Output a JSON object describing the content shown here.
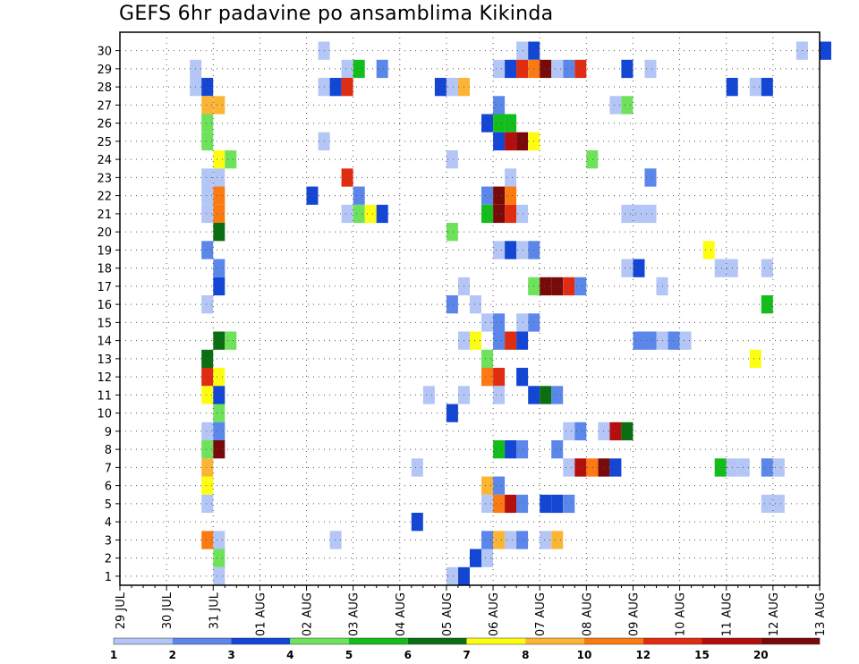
{
  "chart_data": {
    "type": "heatmap",
    "title": "GEFS 6hr padavine po ansamblima Kikinda",
    "xlabel": "",
    "ylabel": "",
    "x_ticks": [
      "29 JUL",
      "30 JUL",
      "31 JUL",
      "01 AUG",
      "02 AUG",
      "03 AUG",
      "04 AUG",
      "05 AUG",
      "06 AUG",
      "07 AUG",
      "08 AUG",
      "09 AUG",
      "10 AUG",
      "11 AUG",
      "12 AUG",
      "13 AUG"
    ],
    "y_range": [
      1,
      30
    ],
    "y_ticks": [
      1,
      2,
      3,
      4,
      5,
      6,
      7,
      8,
      9,
      10,
      11,
      12,
      13,
      14,
      15,
      16,
      17,
      18,
      19,
      20,
      21,
      22,
      23,
      24,
      25,
      26,
      27,
      28,
      29,
      30
    ],
    "grid": true,
    "time_step": "6hr",
    "colorbar": {
      "labels": [
        "1",
        "2",
        "3",
        "4",
        "5",
        "6",
        "7",
        "8",
        "10",
        "12",
        "15",
        "20"
      ],
      "colors": [
        "#b3c6f5",
        "#5b86ea",
        "#1446d6",
        "#6ee25b",
        "#12bd1c",
        "#0a6e12",
        "#fdfd12",
        "#fbb535",
        "#fb7a12",
        "#e02d12",
        "#b50e0e",
        "#780a0a"
      ]
    },
    "cells": [
      {
        "m": 30,
        "t": "02 AUG 06",
        "c": 1
      },
      {
        "m": 30,
        "t": "06 AUG 12",
        "c": 1
      },
      {
        "m": 30,
        "t": "06 AUG 18",
        "c": 3
      },
      {
        "m": 30,
        "t": "12 AUG 12",
        "c": 1
      },
      {
        "m": 30,
        "t": "13 AUG 00",
        "c": 3
      },
      {
        "m": 29,
        "t": "30 JUL 12",
        "c": 1
      },
      {
        "m": 29,
        "t": "02 AUG 18",
        "c": 1
      },
      {
        "m": 29,
        "t": "03 AUG 00",
        "c": 5
      },
      {
        "m": 29,
        "t": "03 AUG 12",
        "c": 2
      },
      {
        "m": 29,
        "t": "06 AUG 00",
        "c": 1
      },
      {
        "m": 29,
        "t": "06 AUG 06",
        "c": 3
      },
      {
        "m": 29,
        "t": "06 AUG 12",
        "c": 10
      },
      {
        "m": 29,
        "t": "06 AUG 18",
        "c": 9
      },
      {
        "m": 29,
        "t": "07 AUG 00",
        "c": 12
      },
      {
        "m": 29,
        "t": "07 AUG 06",
        "c": 1
      },
      {
        "m": 29,
        "t": "07 AUG 12",
        "c": 2
      },
      {
        "m": 29,
        "t": "07 AUG 18",
        "c": 10
      },
      {
        "m": 29,
        "t": "08 AUG 18",
        "c": 3
      },
      {
        "m": 29,
        "t": "09 AUG 06",
        "c": 1
      },
      {
        "m": 28,
        "t": "30 JUL 12",
        "c": 1
      },
      {
        "m": 28,
        "t": "30 JUL 18",
        "c": 3
      },
      {
        "m": 28,
        "t": "02 AUG 06",
        "c": 1
      },
      {
        "m": 28,
        "t": "02 AUG 12",
        "c": 3
      },
      {
        "m": 28,
        "t": "02 AUG 18",
        "c": 10
      },
      {
        "m": 28,
        "t": "04 AUG 18",
        "c": 3
      },
      {
        "m": 28,
        "t": "05 AUG 00",
        "c": 1
      },
      {
        "m": 28,
        "t": "05 AUG 06",
        "c": 8
      },
      {
        "m": 28,
        "t": "11 AUG 00",
        "c": 3
      },
      {
        "m": 28,
        "t": "11 AUG 12",
        "c": 1
      },
      {
        "m": 28,
        "t": "11 AUG 18",
        "c": 3
      },
      {
        "m": 27,
        "t": "30 JUL 18",
        "c": 8
      },
      {
        "m": 27,
        "t": "31 JUL 00",
        "c": 8
      },
      {
        "m": 27,
        "t": "06 AUG 00",
        "c": 2
      },
      {
        "m": 27,
        "t": "08 AUG 12",
        "c": 1
      },
      {
        "m": 27,
        "t": "08 AUG 18",
        "c": 4
      },
      {
        "m": 26,
        "t": "30 JUL 18",
        "c": 4
      },
      {
        "m": 26,
        "t": "05 AUG 18",
        "c": 3
      },
      {
        "m": 26,
        "t": "06 AUG 00",
        "c": 5
      },
      {
        "m": 26,
        "t": "06 AUG 06",
        "c": 5
      },
      {
        "m": 25,
        "t": "30 JUL 18",
        "c": 4
      },
      {
        "m": 25,
        "t": "02 AUG 06",
        "c": 1
      },
      {
        "m": 25,
        "t": "06 AUG 00",
        "c": 3
      },
      {
        "m": 25,
        "t": "06 AUG 06",
        "c": 11
      },
      {
        "m": 25,
        "t": "06 AUG 12",
        "c": 12
      },
      {
        "m": 25,
        "t": "06 AUG 18",
        "c": 7
      },
      {
        "m": 24,
        "t": "31 JUL 00",
        "c": 7
      },
      {
        "m": 24,
        "t": "31 JUL 06",
        "c": 4
      },
      {
        "m": 24,
        "t": "05 AUG 00",
        "c": 1
      },
      {
        "m": 24,
        "t": "08 AUG 00",
        "c": 4
      },
      {
        "m": 23,
        "t": "30 JUL 18",
        "c": 1
      },
      {
        "m": 23,
        "t": "31 JUL 00",
        "c": 1
      },
      {
        "m": 23,
        "t": "02 AUG 18",
        "c": 10
      },
      {
        "m": 23,
        "t": "06 AUG 06",
        "c": 1
      },
      {
        "m": 23,
        "t": "09 AUG 06",
        "c": 2
      },
      {
        "m": 22,
        "t": "30 JUL 18",
        "c": 1
      },
      {
        "m": 22,
        "t": "31 JUL 00",
        "c": 9
      },
      {
        "m": 22,
        "t": "02 AUG 00",
        "c": 3
      },
      {
        "m": 22,
        "t": "03 AUG 00",
        "c": 2
      },
      {
        "m": 22,
        "t": "05 AUG 18",
        "c": 2
      },
      {
        "m": 22,
        "t": "06 AUG 00",
        "c": 12
      },
      {
        "m": 22,
        "t": "06 AUG 06",
        "c": 9
      },
      {
        "m": 21,
        "t": "30 JUL 18",
        "c": 1
      },
      {
        "m": 21,
        "t": "31 JUL 00",
        "c": 9
      },
      {
        "m": 21,
        "t": "02 AUG 18",
        "c": 1
      },
      {
        "m": 21,
        "t": "03 AUG 00",
        "c": 4
      },
      {
        "m": 21,
        "t": "03 AUG 06",
        "c": 7
      },
      {
        "m": 21,
        "t": "03 AUG 12",
        "c": 3
      },
      {
        "m": 21,
        "t": "05 AUG 18",
        "c": 5
      },
      {
        "m": 21,
        "t": "06 AUG 00",
        "c": 12
      },
      {
        "m": 21,
        "t": "06 AUG 06",
        "c": 10
      },
      {
        "m": 21,
        "t": "06 AUG 12",
        "c": 1
      },
      {
        "m": 21,
        "t": "08 AUG 18",
        "c": 1
      },
      {
        "m": 21,
        "t": "09 AUG 00",
        "c": 1
      },
      {
        "m": 21,
        "t": "09 AUG 06",
        "c": 1
      },
      {
        "m": 20,
        "t": "31 JUL 00",
        "c": 6
      },
      {
        "m": 20,
        "t": "05 AUG 00",
        "c": 4
      },
      {
        "m": 19,
        "t": "30 JUL 18",
        "c": 2
      },
      {
        "m": 19,
        "t": "06 AUG 00",
        "c": 1
      },
      {
        "m": 19,
        "t": "06 AUG 06",
        "c": 3
      },
      {
        "m": 19,
        "t": "06 AUG 12",
        "c": 1
      },
      {
        "m": 19,
        "t": "06 AUG 18",
        "c": 2
      },
      {
        "m": 19,
        "t": "10 AUG 12",
        "c": 7
      },
      {
        "m": 18,
        "t": "31 JUL 00",
        "c": 2
      },
      {
        "m": 18,
        "t": "08 AUG 18",
        "c": 1
      },
      {
        "m": 18,
        "t": "09 AUG 00",
        "c": 3
      },
      {
        "m": 18,
        "t": "10 AUG 18",
        "c": 1
      },
      {
        "m": 18,
        "t": "11 AUG 00",
        "c": 1
      },
      {
        "m": 18,
        "t": "11 AUG 18",
        "c": 1
      },
      {
        "m": 17,
        "t": "31 JUL 00",
        "c": 3
      },
      {
        "m": 17,
        "t": "05 AUG 06",
        "c": 1
      },
      {
        "m": 17,
        "t": "06 AUG 18",
        "c": 4
      },
      {
        "m": 17,
        "t": "07 AUG 00",
        "c": 12
      },
      {
        "m": 17,
        "t": "07 AUG 06",
        "c": 12
      },
      {
        "m": 17,
        "t": "07 AUG 12",
        "c": 10
      },
      {
        "m": 17,
        "t": "07 AUG 18",
        "c": 2
      },
      {
        "m": 17,
        "t": "09 AUG 12",
        "c": 1
      },
      {
        "m": 16,
        "t": "30 JUL 18",
        "c": 1
      },
      {
        "m": 16,
        "t": "05 AUG 00",
        "c": 2
      },
      {
        "m": 16,
        "t": "05 AUG 12",
        "c": 1
      },
      {
        "m": 16,
        "t": "11 AUG 18",
        "c": 5
      },
      {
        "m": 15,
        "t": "05 AUG 18",
        "c": 1
      },
      {
        "m": 15,
        "t": "06 AUG 00",
        "c": 2
      },
      {
        "m": 15,
        "t": "06 AUG 12",
        "c": 1
      },
      {
        "m": 15,
        "t": "06 AUG 18",
        "c": 2
      },
      {
        "m": 14,
        "t": "31 JUL 00",
        "c": 6
      },
      {
        "m": 14,
        "t": "31 JUL 06",
        "c": 4
      },
      {
        "m": 14,
        "t": "05 AUG 06",
        "c": 1
      },
      {
        "m": 14,
        "t": "05 AUG 12",
        "c": 7
      },
      {
        "m": 14,
        "t": "06 AUG 00",
        "c": 2
      },
      {
        "m": 14,
        "t": "06 AUG 06",
        "c": 10
      },
      {
        "m": 14,
        "t": "06 AUG 12",
        "c": 3
      },
      {
        "m": 14,
        "t": "09 AUG 00",
        "c": 2
      },
      {
        "m": 14,
        "t": "09 AUG 06",
        "c": 2
      },
      {
        "m": 14,
        "t": "09 AUG 12",
        "c": 1
      },
      {
        "m": 14,
        "t": "09 AUG 18",
        "c": 2
      },
      {
        "m": 14,
        "t": "10 AUG 00",
        "c": 1
      },
      {
        "m": 13,
        "t": "30 JUL 18",
        "c": 6
      },
      {
        "m": 13,
        "t": "05 AUG 18",
        "c": 4
      },
      {
        "m": 13,
        "t": "11 AUG 12",
        "c": 7
      },
      {
        "m": 12,
        "t": "30 JUL 18",
        "c": 10
      },
      {
        "m": 12,
        "t": "31 JUL 00",
        "c": 7
      },
      {
        "m": 12,
        "t": "05 AUG 18",
        "c": 9
      },
      {
        "m": 12,
        "t": "06 AUG 00",
        "c": 10
      },
      {
        "m": 12,
        "t": "06 AUG 12",
        "c": 3
      },
      {
        "m": 11,
        "t": "30 JUL 18",
        "c": 7
      },
      {
        "m": 11,
        "t": "31 JUL 00",
        "c": 3
      },
      {
        "m": 11,
        "t": "04 AUG 12",
        "c": 1
      },
      {
        "m": 11,
        "t": "05 AUG 06",
        "c": 1
      },
      {
        "m": 11,
        "t": "06 AUG 00",
        "c": 1
      },
      {
        "m": 11,
        "t": "06 AUG 18",
        "c": 3
      },
      {
        "m": 11,
        "t": "07 AUG 00",
        "c": 6
      },
      {
        "m": 11,
        "t": "07 AUG 06",
        "c": 2
      },
      {
        "m": 10,
        "t": "31 JUL 00",
        "c": 4
      },
      {
        "m": 10,
        "t": "05 AUG 00",
        "c": 3
      },
      {
        "m": 9,
        "t": "30 JUL 18",
        "c": 1
      },
      {
        "m": 9,
        "t": "31 JUL 00",
        "c": 2
      },
      {
        "m": 9,
        "t": "07 AUG 12",
        "c": 1
      },
      {
        "m": 9,
        "t": "07 AUG 18",
        "c": 2
      },
      {
        "m": 9,
        "t": "08 AUG 06",
        "c": 1
      },
      {
        "m": 9,
        "t": "08 AUG 12",
        "c": 11
      },
      {
        "m": 9,
        "t": "08 AUG 18",
        "c": 6
      },
      {
        "m": 8,
        "t": "30 JUL 18",
        "c": 4
      },
      {
        "m": 8,
        "t": "31 JUL 00",
        "c": 12
      },
      {
        "m": 8,
        "t": "06 AUG 00",
        "c": 5
      },
      {
        "m": 8,
        "t": "06 AUG 06",
        "c": 3
      },
      {
        "m": 8,
        "t": "06 AUG 12",
        "c": 2
      },
      {
        "m": 8,
        "t": "07 AUG 06",
        "c": 2
      },
      {
        "m": 7,
        "t": "30 JUL 18",
        "c": 8
      },
      {
        "m": 7,
        "t": "04 AUG 06",
        "c": 1
      },
      {
        "m": 7,
        "t": "07 AUG 12",
        "c": 1
      },
      {
        "m": 7,
        "t": "07 AUG 18",
        "c": 11
      },
      {
        "m": 7,
        "t": "08 AUG 00",
        "c": 9
      },
      {
        "m": 7,
        "t": "08 AUG 06",
        "c": 12
      },
      {
        "m": 7,
        "t": "08 AUG 12",
        "c": 3
      },
      {
        "m": 7,
        "t": "10 AUG 18",
        "c": 5
      },
      {
        "m": 7,
        "t": "11 AUG 00",
        "c": 1
      },
      {
        "m": 7,
        "t": "11 AUG 06",
        "c": 1
      },
      {
        "m": 7,
        "t": "11 AUG 18",
        "c": 2
      },
      {
        "m": 7,
        "t": "12 AUG 00",
        "c": 1
      },
      {
        "m": 6,
        "t": "30 JUL 18",
        "c": 7
      },
      {
        "m": 6,
        "t": "05 AUG 18",
        "c": 8
      },
      {
        "m": 6,
        "t": "06 AUG 00",
        "c": 2
      },
      {
        "m": 5,
        "t": "30 JUL 18",
        "c": 1
      },
      {
        "m": 5,
        "t": "05 AUG 18",
        "c": 1
      },
      {
        "m": 5,
        "t": "06 AUG 00",
        "c": 9
      },
      {
        "m": 5,
        "t": "06 AUG 06",
        "c": 11
      },
      {
        "m": 5,
        "t": "06 AUG 12",
        "c": 2
      },
      {
        "m": 5,
        "t": "07 AUG 00",
        "c": 3
      },
      {
        "m": 5,
        "t": "07 AUG 06",
        "c": 3
      },
      {
        "m": 5,
        "t": "07 AUG 12",
        "c": 2
      },
      {
        "m": 5,
        "t": "11 AUG 18",
        "c": 1
      },
      {
        "m": 5,
        "t": "12 AUG 00",
        "c": 1
      },
      {
        "m": 4,
        "t": "04 AUG 06",
        "c": 3
      },
      {
        "m": 3,
        "t": "30 JUL 18",
        "c": 9
      },
      {
        "m": 3,
        "t": "31 JUL 00",
        "c": 1
      },
      {
        "m": 3,
        "t": "02 AUG 12",
        "c": 1
      },
      {
        "m": 3,
        "t": "05 AUG 18",
        "c": 2
      },
      {
        "m": 3,
        "t": "06 AUG 00",
        "c": 8
      },
      {
        "m": 3,
        "t": "06 AUG 06",
        "c": 1
      },
      {
        "m": 3,
        "t": "06 AUG 12",
        "c": 2
      },
      {
        "m": 3,
        "t": "07 AUG 00",
        "c": 1
      },
      {
        "m": 3,
        "t": "07 AUG 06",
        "c": 8
      },
      {
        "m": 2,
        "t": "31 JUL 00",
        "c": 4
      },
      {
        "m": 2,
        "t": "05 AUG 12",
        "c": 3
      },
      {
        "m": 2,
        "t": "05 AUG 18",
        "c": 1
      },
      {
        "m": 1,
        "t": "31 JUL 00",
        "c": 1
      },
      {
        "m": 1,
        "t": "05 AUG 00",
        "c": 1
      },
      {
        "m": 1,
        "t": "05 AUG 06",
        "c": 3
      }
    ]
  }
}
